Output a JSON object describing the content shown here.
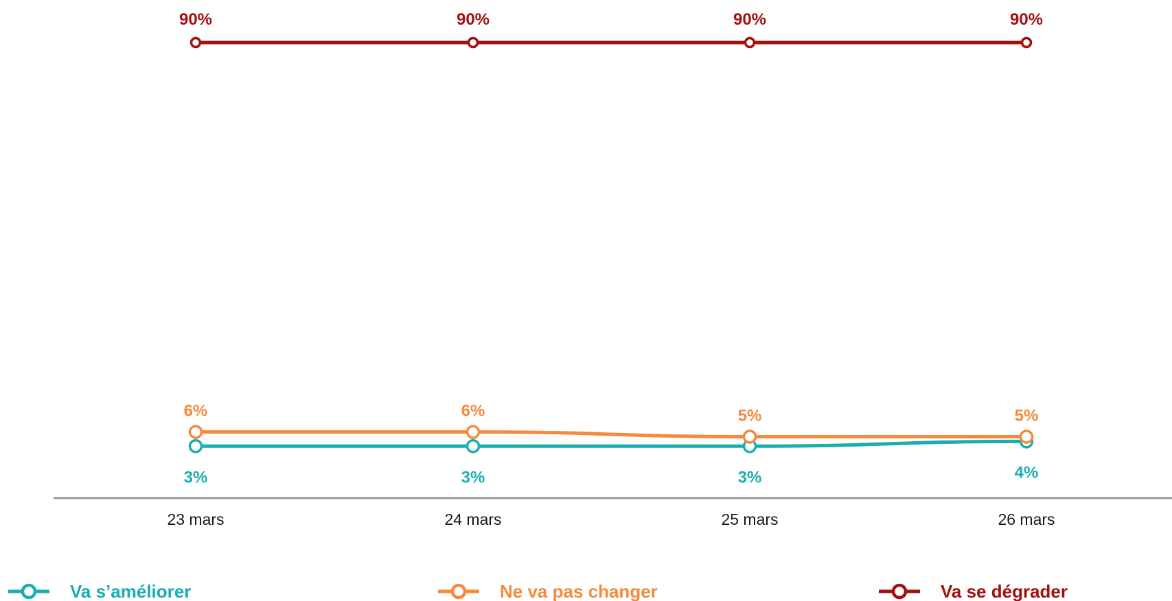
{
  "chart_data": {
    "type": "line",
    "categories": [
      "23 mars",
      "24 mars",
      "25 mars",
      "26 mars"
    ],
    "series": [
      {
        "name": "Va s’améliorer",
        "color": "#1aaeb0",
        "values": [
          3,
          3,
          3,
          4
        ],
        "labels": [
          "3%",
          "3%",
          "3%",
          "4%"
        ]
      },
      {
        "name": "Ne va pas changer",
        "color": "#f58a3c",
        "values": [
          6,
          6,
          5,
          5
        ],
        "labels": [
          "6%",
          "6%",
          "5%",
          "5%"
        ]
      },
      {
        "name": "Va se dégrader",
        "color": "#a50f0f",
        "values": [
          90,
          90,
          90,
          90
        ],
        "labels": [
          "90%",
          "90%",
          "90%",
          "90%"
        ]
      }
    ],
    "ylim": [
      0,
      90
    ],
    "grid": false,
    "legend_position": "bottom"
  }
}
